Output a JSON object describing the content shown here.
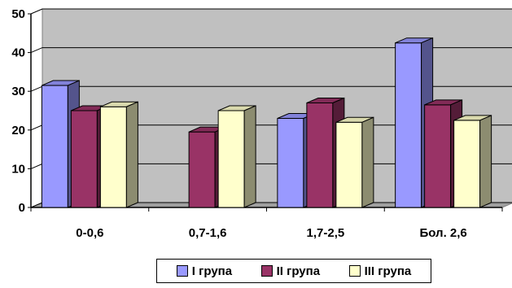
{
  "chart_data": {
    "type": "bar",
    "style": "3d-clustered-column",
    "categories": [
      "0-0,6",
      "0,7-1,6",
      "1,7-2,5",
      "Бол. 2,6"
    ],
    "series": [
      {
        "name": "I група",
        "values": [
          31.5,
          0,
          23,
          42.5
        ],
        "color": "#9999ff"
      },
      {
        "name": "II група",
        "values": [
          25,
          19.5,
          27,
          26.5
        ],
        "color": "#993366"
      },
      {
        "name": "III група",
        "values": [
          26,
          25,
          22,
          22.5
        ],
        "color": "#ffffcc"
      }
    ],
    "yticks": [
      0,
      10,
      20,
      30,
      40,
      50
    ],
    "ylim": [
      0,
      50
    ],
    "grid": true,
    "legend": "bottom",
    "wall_color": "#c0c0c0"
  }
}
